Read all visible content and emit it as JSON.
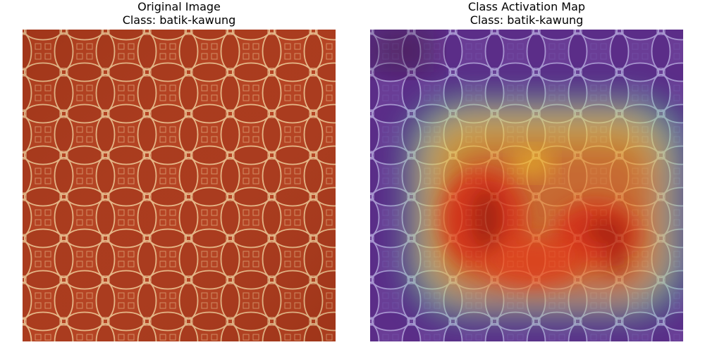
{
  "panels": {
    "left": {
      "title": "Original Image",
      "class_line": "Class: batik-kawung",
      "image": "batik-kawung-fabric-photo"
    },
    "right": {
      "title": "Class Activation Map",
      "class_line": "Class: batik-kawung",
      "image": "batik-kawung-cam-heatmap-overlay"
    }
  },
  "colors": {
    "fabric": "#b8401f",
    "pattern": "#e8b98a",
    "overlay_low": "#3a0a9a",
    "overlay_high": "#d01010"
  }
}
